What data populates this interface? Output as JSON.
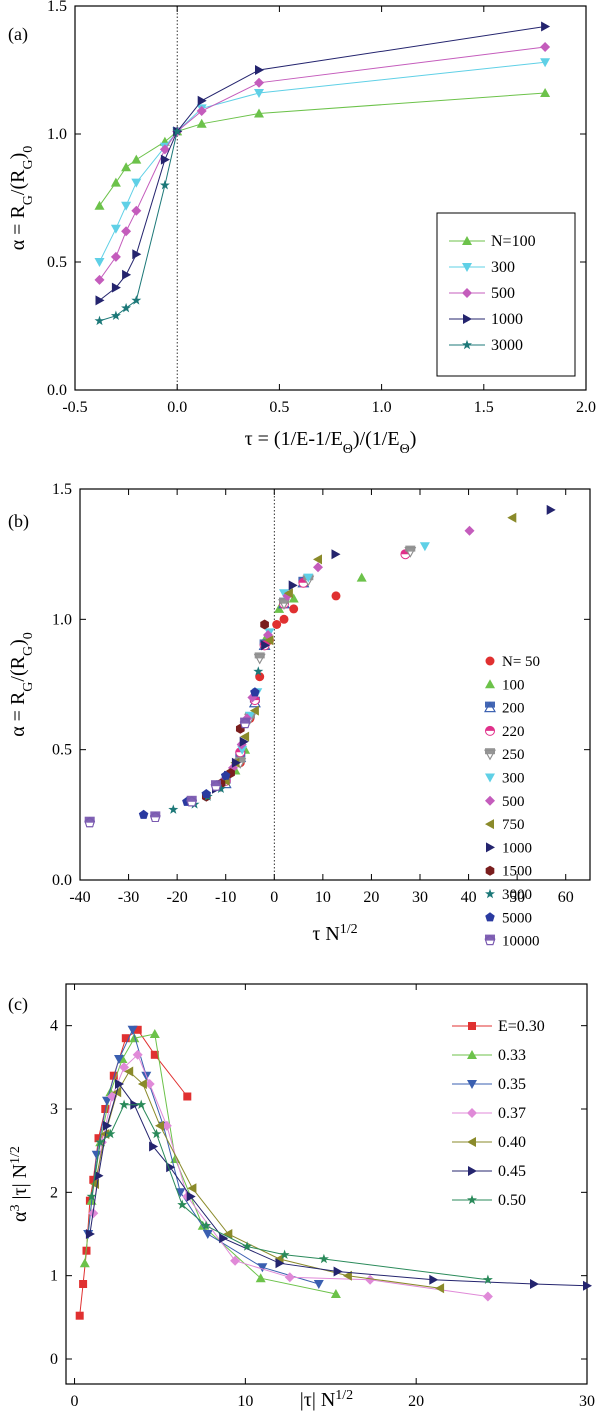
{
  "chart_data": [
    {
      "panel_label": "(a)",
      "type": "line",
      "xlabel": "τ = (1/E-1/EΘ)/(1/EΘ)",
      "ylabel": "α = RG/(RG)0",
      "xlim": [
        -0.5,
        2.0
      ],
      "ylim": [
        0.0,
        1.5
      ],
      "xticks": [
        "-0.5",
        "0.0",
        "0.5",
        "1.0",
        "1.5",
        "2.0"
      ],
      "yticks": [
        "0.0",
        "0.5",
        "1.0",
        "1.5"
      ],
      "reference_line_x": 0,
      "legend_position": "lower-right",
      "series": [
        {
          "name": "N=100",
          "color": "#6cc24a",
          "marker": "triangle-up",
          "x": [
            -0.38,
            -0.3,
            -0.25,
            -0.2,
            -0.06,
            0.0,
            0.12,
            0.4,
            1.8
          ],
          "y": [
            0.72,
            0.81,
            0.87,
            0.9,
            0.97,
            1.01,
            1.04,
            1.08,
            1.16
          ]
        },
        {
          "name": "300",
          "color": "#5fd0e6",
          "marker": "triangle-down",
          "x": [
            -0.38,
            -0.3,
            -0.25,
            -0.2,
            -0.06,
            0.0,
            0.12,
            0.4,
            1.8
          ],
          "y": [
            0.5,
            0.63,
            0.72,
            0.81,
            0.95,
            1.01,
            1.1,
            1.16,
            1.28
          ]
        },
        {
          "name": "500",
          "color": "#c45cbc",
          "marker": "diamond",
          "x": [
            -0.38,
            -0.3,
            -0.25,
            -0.2,
            -0.06,
            0.0,
            0.12,
            0.4,
            1.8
          ],
          "y": [
            0.43,
            0.52,
            0.62,
            0.7,
            0.94,
            1.01,
            1.09,
            1.2,
            1.34
          ]
        },
        {
          "name": "1000",
          "color": "#24246e",
          "marker": "triangle-right",
          "x": [
            -0.38,
            -0.3,
            -0.25,
            -0.2,
            -0.06,
            0.0,
            0.12,
            0.4,
            1.8
          ],
          "y": [
            0.35,
            0.4,
            0.45,
            0.53,
            0.9,
            1.01,
            1.13,
            1.25,
            1.42
          ]
        },
        {
          "name": "3000",
          "color": "#1c7878",
          "marker": "star",
          "x": [
            -0.38,
            -0.3,
            -0.25,
            -0.2,
            -0.06,
            0.0
          ],
          "y": [
            0.27,
            0.29,
            0.32,
            0.35,
            0.8,
            1.01
          ]
        }
      ]
    },
    {
      "panel_label": "(b)",
      "type": "scatter",
      "xlabel": "τ N1/2",
      "ylabel": "α = RG/(RG)0",
      "xlim": [
        -40,
        65
      ],
      "ylim": [
        0.0,
        1.5
      ],
      "xticks": [
        "-40",
        "-30",
        "-20",
        "-10",
        "0",
        "10",
        "20",
        "30",
        "40",
        "50",
        "60"
      ],
      "yticks": [
        "0.0",
        "0.5",
        "1.0",
        "1.5"
      ],
      "reference_line_x": 0,
      "legend_position": "right",
      "series": [
        {
          "name": "N= 50",
          "color": "#e03030",
          "marker": "circle",
          "x": [
            -7,
            -5,
            -3,
            -1,
            0.5,
            2,
            4,
            12.7
          ],
          "y": [
            0.45,
            0.62,
            0.78,
            0.92,
            0.98,
            1.0,
            1.04,
            1.09
          ]
        },
        {
          "name": "100",
          "color": "#6cc24a",
          "marker": "triangle-up",
          "x": [
            -8,
            -6,
            -4,
            -2,
            1,
            4,
            18
          ],
          "y": [
            0.42,
            0.5,
            0.7,
            0.92,
            1.04,
            1.08,
            1.16
          ]
        },
        {
          "name": "200",
          "color": "#3a5fb0",
          "marker": "triangle-up-half",
          "x": [
            -10,
            -7,
            -4,
            -2,
            2,
            6
          ],
          "y": [
            0.37,
            0.47,
            0.68,
            0.9,
            1.06,
            1.14
          ]
        },
        {
          "name": "220",
          "color": "#e0308a",
          "marker": "circle-half",
          "x": [
            -10,
            -7,
            -4,
            -2,
            2,
            6,
            27
          ],
          "y": [
            0.38,
            0.49,
            0.69,
            0.9,
            1.06,
            1.14,
            1.25
          ]
        },
        {
          "name": "250",
          "color": "#909090",
          "marker": "triangle-down-half",
          "x": [
            -11,
            -7,
            -5,
            -3,
            2,
            7,
            28
          ],
          "y": [
            0.36,
            0.45,
            0.62,
            0.85,
            1.06,
            1.15,
            1.26
          ]
        },
        {
          "name": "300",
          "color": "#5fd0e6",
          "marker": "triangle-down",
          "x": [
            -6.6,
            -5,
            -3.5,
            -1,
            2,
            7,
            31
          ],
          "y": [
            0.5,
            0.63,
            0.72,
            0.95,
            1.1,
            1.16,
            1.28
          ]
        },
        {
          "name": "500",
          "color": "#c45cbc",
          "marker": "diamond",
          "x": [
            -8.5,
            -6.7,
            -5.6,
            -4.5,
            -1.3,
            2.7,
            9,
            40.2
          ],
          "y": [
            0.43,
            0.52,
            0.62,
            0.7,
            0.94,
            1.09,
            1.2,
            1.34
          ]
        },
        {
          "name": "750",
          "color": "#8a8a2a",
          "marker": "triangle-left",
          "x": [
            -10,
            -8,
            -6,
            -4,
            -1,
            3,
            9,
            49
          ],
          "y": [
            0.38,
            0.45,
            0.55,
            0.65,
            0.92,
            1.1,
            1.23,
            1.39
          ]
        },
        {
          "name": "1000",
          "color": "#24246e",
          "marker": "triangle-right",
          "x": [
            -12,
            -9.5,
            -7.9,
            -6.3,
            -1.9,
            3.8,
            12.6,
            56.9
          ],
          "y": [
            0.35,
            0.4,
            0.45,
            0.53,
            0.9,
            1.13,
            1.25,
            1.42
          ]
        },
        {
          "name": "1500",
          "color": "#7a1e1e",
          "marker": "hexagon",
          "x": [
            -14,
            -11,
            -9,
            -7,
            -2
          ],
          "y": [
            0.32,
            0.37,
            0.41,
            0.58,
            0.98
          ]
        },
        {
          "name": "3000",
          "color": "#1c7878",
          "marker": "star",
          "x": [
            -20.8,
            -16.4,
            -13.7,
            -11,
            -3.3
          ],
          "y": [
            0.27,
            0.29,
            0.32,
            0.35,
            0.8
          ]
        },
        {
          "name": "5000",
          "color": "#2a3aa0",
          "marker": "pentagon",
          "x": [
            -26.9,
            -18,
            -14,
            -10,
            -4
          ],
          "y": [
            0.25,
            0.3,
            0.33,
            0.4,
            0.72
          ]
        },
        {
          "name": "10000",
          "color": "#7a5ab0",
          "marker": "pentagon-half",
          "x": [
            -38,
            -24.5,
            -17,
            -12,
            -6
          ],
          "y": [
            0.22,
            0.24,
            0.3,
            0.36,
            0.6
          ]
        }
      ]
    },
    {
      "panel_label": "(c)",
      "type": "line",
      "xlabel": "|τ| N1/2",
      "ylabel": "α3 |τ| N1/2",
      "xlim": [
        -0.5,
        30
      ],
      "ylim": [
        -0.3,
        4.5
      ],
      "xticks": [
        "0",
        "10",
        "20",
        "30"
      ],
      "yticks": [
        "0",
        "1",
        "2",
        "3",
        "4"
      ],
      "legend_position": "top-right",
      "series": [
        {
          "name": "E=0.30",
          "color": "#e03030",
          "marker": "square",
          "x": [
            0.3,
            0.5,
            0.7,
            0.9,
            1.1,
            1.4,
            1.8,
            2.3,
            3.0,
            3.7,
            4.7,
            6.6
          ],
          "y": [
            0.52,
            0.9,
            1.3,
            1.9,
            2.15,
            2.65,
            3.0,
            3.4,
            3.85,
            3.95,
            3.65,
            3.15
          ]
        },
        {
          "name": "0.33",
          "color": "#6cc24a",
          "marker": "triangle-up",
          "x": [
            0.6,
            1.0,
            1.5,
            2.1,
            2.8,
            3.5,
            4.7,
            5.9,
            7.5,
            10.9,
            15.3
          ],
          "y": [
            1.15,
            1.9,
            2.6,
            3.2,
            3.6,
            3.85,
            3.9,
            2.4,
            1.6,
            0.97,
            0.78
          ]
        },
        {
          "name": "0.35",
          "color": "#3a5fb0",
          "marker": "triangle-down",
          "x": [
            0.8,
            1.3,
            1.9,
            2.6,
            3.4,
            4.2,
            5.2,
            6.2,
            7.8,
            11.0,
            14.3
          ],
          "y": [
            1.5,
            2.45,
            3.1,
            3.6,
            3.95,
            3.4,
            2.8,
            2.0,
            1.5,
            1.1,
            0.9
          ]
        },
        {
          "name": "0.37",
          "color": "#e08ad8",
          "marker": "diamond",
          "x": [
            1.1,
            1.6,
            2.2,
            2.9,
            3.7,
            4.4,
            5.4,
            6.6,
            9.4,
            12.6,
            17.3,
            24.2
          ],
          "y": [
            1.75,
            2.6,
            3.15,
            3.5,
            3.65,
            3.3,
            2.8,
            1.95,
            1.18,
            0.98,
            0.95,
            0.75
          ]
        },
        {
          "name": "0.40",
          "color": "#8a8a2a",
          "marker": "triangle-left",
          "x": [
            1.2,
            1.8,
            2.5,
            3.2,
            4.0,
            5.0,
            6.9,
            9.0,
            12.0,
            16.0,
            21.4
          ],
          "y": [
            2.1,
            2.7,
            3.2,
            3.45,
            3.3,
            2.8,
            2.05,
            1.5,
            1.2,
            1.0,
            0.85
          ]
        },
        {
          "name": "0.45",
          "color": "#24246e",
          "marker": "triangle-right",
          "x": [
            0.9,
            1.4,
            1.9,
            2.6,
            3.5,
            4.6,
            5.6,
            6.8,
            8.7,
            12.0,
            15.4,
            21.0,
            26.9,
            30.0
          ],
          "y": [
            1.5,
            2.2,
            2.8,
            3.3,
            3.05,
            2.55,
            2.3,
            1.95,
            1.45,
            1.15,
            1.05,
            0.95,
            0.9,
            0.88
          ]
        },
        {
          "name": "0.50",
          "color": "#2a8a5a",
          "marker": "star",
          "x": [
            1.0,
            1.5,
            2.1,
            2.9,
            3.9,
            4.8,
            6.3,
            7.7,
            10.1,
            12.3,
            14.6,
            24.2
          ],
          "y": [
            1.95,
            2.6,
            2.7,
            3.05,
            3.05,
            2.7,
            1.85,
            1.6,
            1.35,
            1.25,
            1.2,
            0.95
          ]
        }
      ]
    }
  ]
}
